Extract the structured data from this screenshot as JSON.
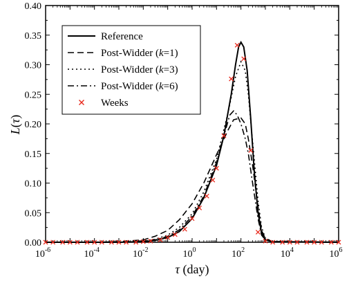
{
  "chart_data": {
    "type": "line",
    "xscale": "log",
    "xlim": [
      1e-06,
      1000000.0
    ],
    "ylim": [
      0.0,
      0.4
    ],
    "xlabel": "τ  (day)",
    "ylabel": "L(τ)",
    "x_ticks": [
      {
        "base": "10",
        "exp": "-6",
        "value": 1e-06
      },
      {
        "base": "10",
        "exp": "-4",
        "value": 0.0001
      },
      {
        "base": "10",
        "exp": "-2",
        "value": 0.01
      },
      {
        "base": "10",
        "exp": "0",
        "value": 1
      },
      {
        "base": "10",
        "exp": "2",
        "value": 100
      },
      {
        "base": "10",
        "exp": "4",
        "value": 10000
      },
      {
        "base": "10",
        "exp": "6",
        "value": 1000000
      }
    ],
    "y_ticks": [
      {
        "label": "0.00",
        "value": 0.0
      },
      {
        "label": "0.05",
        "value": 0.05
      },
      {
        "label": "0.10",
        "value": 0.1
      },
      {
        "label": "0.15",
        "value": 0.15
      },
      {
        "label": "0.20",
        "value": 0.2
      },
      {
        "label": "0.25",
        "value": 0.25
      },
      {
        "label": "0.30",
        "value": 0.3
      },
      {
        "label": "0.35",
        "value": 0.35
      },
      {
        "label": "0.40",
        "value": 0.4
      }
    ],
    "legend_position": "top-left",
    "series": [
      {
        "name": "Reference",
        "style": "solid",
        "color": "#000000",
        "points": [
          [
            1e-06,
            0
          ],
          [
            0.001,
            0.0
          ],
          [
            0.01,
            0.001
          ],
          [
            0.03,
            0.003
          ],
          [
            0.1,
            0.008
          ],
          [
            0.3,
            0.018
          ],
          [
            1,
            0.04
          ],
          [
            3,
            0.075
          ],
          [
            10,
            0.13
          ],
          [
            20,
            0.18
          ],
          [
            40,
            0.25
          ],
          [
            60,
            0.3
          ],
          [
            80,
            0.33
          ],
          [
            100,
            0.338
          ],
          [
            130,
            0.33
          ],
          [
            180,
            0.29
          ],
          [
            250,
            0.21
          ],
          [
            350,
            0.12
          ],
          [
            500,
            0.05
          ],
          [
            700,
            0.015
          ],
          [
            1000,
            0.004
          ],
          [
            2000,
            0.001
          ],
          [
            1000000.0,
            0
          ]
        ]
      },
      {
        "name": "Post-Widder (k=1)",
        "style": "dashed",
        "color": "#000000",
        "points": [
          [
            1e-06,
            0
          ],
          [
            0.0001,
            0.0
          ],
          [
            0.001,
            0.001
          ],
          [
            0.01,
            0.004
          ],
          [
            0.03,
            0.01
          ],
          [
            0.1,
            0.02
          ],
          [
            0.3,
            0.038
          ],
          [
            1,
            0.065
          ],
          [
            3,
            0.1
          ],
          [
            10,
            0.148
          ],
          [
            30,
            0.19
          ],
          [
            50,
            0.207
          ],
          [
            100,
            0.21
          ],
          [
            150,
            0.2
          ],
          [
            200,
            0.175
          ],
          [
            300,
            0.13
          ],
          [
            500,
            0.06
          ],
          [
            700,
            0.02
          ],
          [
            1000,
            0.006
          ],
          [
            2000,
            0.001
          ],
          [
            1000000.0,
            0
          ]
        ]
      },
      {
        "name": "Post-Widder (k=3)",
        "style": "dotted",
        "color": "#000000",
        "points": [
          [
            1e-06,
            0
          ],
          [
            0.001,
            0.0
          ],
          [
            0.01,
            0.002
          ],
          [
            0.03,
            0.005
          ],
          [
            0.1,
            0.012
          ],
          [
            0.3,
            0.025
          ],
          [
            1,
            0.048
          ],
          [
            3,
            0.085
          ],
          [
            10,
            0.14
          ],
          [
            30,
            0.22
          ],
          [
            60,
            0.28
          ],
          [
            100,
            0.305
          ],
          [
            150,
            0.29
          ],
          [
            200,
            0.25
          ],
          [
            300,
            0.17
          ],
          [
            500,
            0.07
          ],
          [
            700,
            0.025
          ],
          [
            1000,
            0.007
          ],
          [
            2000,
            0.001
          ],
          [
            1000000.0,
            0
          ]
        ]
      },
      {
        "name": "Post-Widder (k=6)",
        "style": "dashdot",
        "color": "#000000",
        "points": [
          [
            1e-06,
            0
          ],
          [
            0.001,
            0.0
          ],
          [
            0.01,
            0.002
          ],
          [
            0.03,
            0.004
          ],
          [
            0.1,
            0.01
          ],
          [
            0.3,
            0.021
          ],
          [
            1,
            0.044
          ],
          [
            3,
            0.078
          ],
          [
            10,
            0.135
          ],
          [
            20,
            0.18
          ],
          [
            35,
            0.215
          ],
          [
            50,
            0.222
          ],
          [
            70,
            0.215
          ],
          [
            100,
            0.2
          ],
          [
            150,
            0.175
          ],
          [
            200,
            0.15
          ],
          [
            300,
            0.1
          ],
          [
            500,
            0.04
          ],
          [
            700,
            0.012
          ],
          [
            1000,
            0.004
          ],
          [
            2000,
            0.001
          ],
          [
            1000000.0,
            0
          ]
        ]
      },
      {
        "name": "Weeks",
        "style": "markers",
        "marker": "x",
        "color": "#e8291c",
        "points": [
          [
            1e-06,
            0
          ],
          [
            2e-06,
            0
          ],
          [
            5e-06,
            0
          ],
          [
            1e-05,
            0
          ],
          [
            2e-05,
            0
          ],
          [
            5e-05,
            0
          ],
          [
            0.0001,
            0
          ],
          [
            0.0002,
            0
          ],
          [
            0.0005,
            0
          ],
          [
            0.001,
            0
          ],
          [
            0.002,
            0
          ],
          [
            0.005,
            0
          ],
          [
            0.01,
            0.001
          ],
          [
            0.02,
            0.002
          ],
          [
            0.05,
            0.004
          ],
          [
            0.1,
            0.008
          ],
          [
            0.2,
            0.013
          ],
          [
            0.5,
            0.022
          ],
          [
            1,
            0.04
          ],
          [
            2,
            0.058
          ],
          [
            4,
            0.078
          ],
          [
            7,
            0.105
          ],
          [
            10,
            0.125
          ],
          [
            20,
            0.18
          ],
          [
            40,
            0.276
          ],
          [
            70,
            0.333
          ],
          [
            130,
            0.31
          ],
          [
            250,
            0.155
          ],
          [
            500,
            0.017
          ],
          [
            1000,
            0.002
          ],
          [
            2000,
            0
          ],
          [
            5000,
            0
          ],
          [
            10000.0,
            0
          ],
          [
            20000.0,
            0
          ],
          [
            50000.0,
            0
          ],
          [
            100000.0,
            0
          ],
          [
            200000.0,
            0
          ],
          [
            500000.0,
            0
          ],
          [
            1000000.0,
            0
          ]
        ]
      }
    ]
  }
}
